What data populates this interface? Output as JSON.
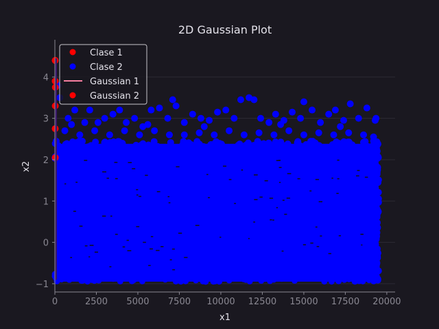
{
  "chart_data": {
    "type": "scatter",
    "title": "2D Gaussian Plot",
    "xlabel": "x1",
    "ylabel": "x2",
    "xlim": [
      0,
      20500
    ],
    "ylim": [
      -1.2,
      4.9
    ],
    "x_ticks": [
      0,
      2500,
      5000,
      7500,
      10000,
      12500,
      15000,
      17500,
      20000
    ],
    "y_ticks": [
      -1,
      0,
      1,
      2,
      3,
      4
    ],
    "grid": true,
    "legend_position": "top-left",
    "colors": {
      "background": "#1a1820",
      "grid": "#2c2a34",
      "axis": "#8a8892",
      "clase1": "#ff0000",
      "clase2": "#0000ff",
      "gaussian1": "#f77fa0",
      "gaussian2": "#ff0000"
    },
    "legend": [
      {
        "label": "Clase 1",
        "marker": "dot",
        "color": "#ff0000"
      },
      {
        "label": "Clase 2",
        "marker": "dot",
        "color": "#0000ff"
      },
      {
        "label": "Gaussian 1",
        "marker": "line",
        "color": "#f77fa0"
      },
      {
        "label": "Gaussian 2",
        "marker": "dot",
        "color": "#ff0000"
      }
    ],
    "series": [
      {
        "name": "Clase 2",
        "kind": "dense_band",
        "x_range": [
          0,
          19500
        ],
        "y_range": [
          -0.95,
          2.45
        ],
        "color": "#0000ff"
      },
      {
        "name": "Clase 2",
        "kind": "points",
        "color": "#0000ff",
        "points": [
          [
            200,
            3.8
          ],
          [
            300,
            3.5
          ],
          [
            800,
            3.0
          ],
          [
            1200,
            3.2
          ],
          [
            1800,
            2.9
          ],
          [
            2100,
            3.2
          ],
          [
            2600,
            2.9
          ],
          [
            3000,
            3.0
          ],
          [
            3500,
            3.1
          ],
          [
            3900,
            3.2
          ],
          [
            4300,
            2.9
          ],
          [
            4800,
            3.0
          ],
          [
            5300,
            2.8
          ],
          [
            5800,
            3.2
          ],
          [
            6300,
            3.25
          ],
          [
            6800,
            3.0
          ],
          [
            7100,
            3.45
          ],
          [
            7300,
            3.3
          ],
          [
            7800,
            2.9
          ],
          [
            8300,
            3.1
          ],
          [
            8800,
            3.0
          ],
          [
            9300,
            2.95
          ],
          [
            9800,
            3.15
          ],
          [
            10300,
            3.2
          ],
          [
            10800,
            3.0
          ],
          [
            11200,
            3.45
          ],
          [
            11700,
            3.5
          ],
          [
            12000,
            3.45
          ],
          [
            12400,
            3.0
          ],
          [
            12900,
            2.9
          ],
          [
            13300,
            3.1
          ],
          [
            13800,
            2.95
          ],
          [
            14300,
            3.15
          ],
          [
            14800,
            3.0
          ],
          [
            15000,
            3.4
          ],
          [
            15500,
            3.2
          ],
          [
            16000,
            2.9
          ],
          [
            16500,
            3.1
          ],
          [
            16900,
            3.2
          ],
          [
            17400,
            2.95
          ],
          [
            17800,
            3.35
          ],
          [
            18300,
            3.0
          ],
          [
            18800,
            3.25
          ],
          [
            19300,
            2.95
          ],
          [
            19350,
            3.0
          ],
          [
            600,
            2.7
          ],
          [
            1500,
            2.6
          ],
          [
            2400,
            2.7
          ],
          [
            3300,
            2.6
          ],
          [
            4200,
            2.7
          ],
          [
            5100,
            2.6
          ],
          [
            6000,
            2.7
          ],
          [
            6900,
            2.6
          ],
          [
            7800,
            2.6
          ],
          [
            8700,
            2.65
          ],
          [
            9600,
            2.6
          ],
          [
            10500,
            2.7
          ],
          [
            11400,
            2.6
          ],
          [
            12300,
            2.65
          ],
          [
            13200,
            2.6
          ],
          [
            14100,
            2.7
          ],
          [
            15000,
            2.6
          ],
          [
            15900,
            2.65
          ],
          [
            16800,
            2.6
          ],
          [
            17700,
            2.65
          ],
          [
            18600,
            2.6
          ],
          [
            19200,
            2.55
          ],
          [
            1000,
            2.85
          ],
          [
            5600,
            2.85
          ],
          [
            9000,
            2.8
          ],
          [
            13600,
            2.85
          ],
          [
            17200,
            2.8
          ]
        ]
      },
      {
        "name": "Clase 1",
        "kind": "points",
        "color": "#ff0000",
        "points": [
          [
            20,
            4.4
          ],
          [
            30,
            3.75
          ],
          [
            25,
            3.3
          ],
          [
            20,
            2.75
          ],
          [
            25,
            2.05
          ],
          [
            20,
            3.9
          ]
        ]
      }
    ]
  }
}
